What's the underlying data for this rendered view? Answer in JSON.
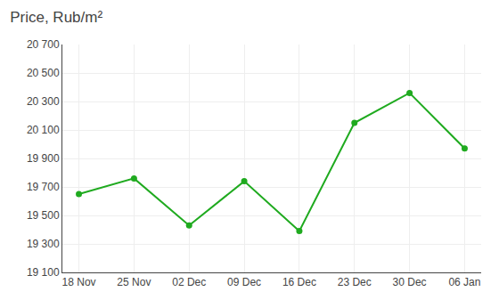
{
  "chart_data": {
    "type": "line",
    "title": "Price, Rub/m²",
    "categories": [
      "18 Nov",
      "25 Nov",
      "02 Dec",
      "09 Dec",
      "16 Dec",
      "23 Dec",
      "30 Dec",
      "06 Jan"
    ],
    "values": [
      19650,
      19760,
      19430,
      19740,
      19390,
      20150,
      20360,
      19970
    ],
    "color": "#1faa1f",
    "marker": "circle",
    "ylim": [
      19100,
      20700
    ],
    "yticks": [
      {
        "value": 19100,
        "label": "19 100"
      },
      {
        "value": 19300,
        "label": "19 300"
      },
      {
        "value": 19500,
        "label": "19 500"
      },
      {
        "value": 19700,
        "label": "19 700"
      },
      {
        "value": 19900,
        "label": "19 900"
      },
      {
        "value": 20100,
        "label": "20 100"
      },
      {
        "value": 20300,
        "label": "20 300"
      },
      {
        "value": 20500,
        "label": "20 500"
      },
      {
        "value": 20700,
        "label": "20 700"
      }
    ],
    "grid": true
  }
}
